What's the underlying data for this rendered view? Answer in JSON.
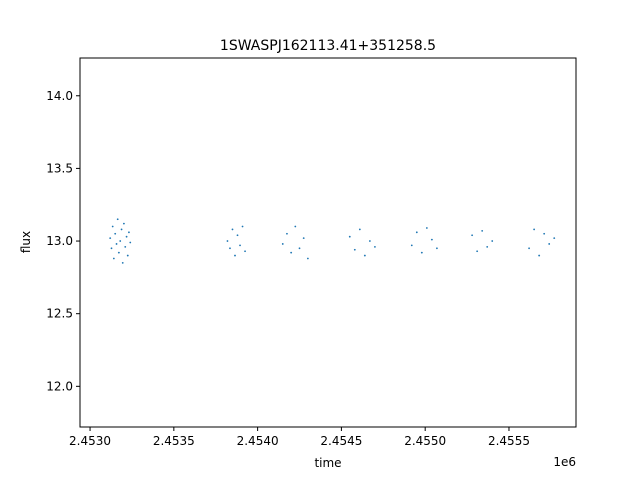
{
  "chart_data": {
    "type": "scatter",
    "title": "1SWASPJ162113.41+351258.5",
    "xlabel": "time",
    "ylabel": "flux",
    "x_offset_label": "1e6",
    "xlim": [
      2452940,
      2455900
    ],
    "ylim": [
      11.72,
      14.26
    ],
    "x_ticks": [
      2453000,
      2453500,
      2454000,
      2454500,
      2455000,
      2455500
    ],
    "x_tick_labels": [
      "2.4530",
      "2.4535",
      "2.4540",
      "2.4545",
      "2.4550",
      "2.4555"
    ],
    "y_ticks": [
      12.0,
      12.5,
      13.0,
      13.5,
      14.0
    ],
    "y_tick_labels": [
      "12.0",
      "12.5",
      "13.0",
      "13.5",
      "14.0"
    ],
    "grid": false,
    "marker_color": "#1f77b4",
    "marker": "point",
    "series": [
      {
        "x": [
          2453120,
          2453128,
          2453135,
          2453142,
          2453150,
          2453158,
          2453165,
          2453172,
          2453180,
          2453188,
          2453195,
          2453202,
          2453210,
          2453218,
          2453225,
          2453232,
          2453240
        ],
        "y": [
          13.02,
          12.95,
          13.1,
          12.88,
          13.05,
          12.98,
          13.15,
          12.92,
          13.0,
          13.08,
          12.85,
          13.12,
          12.96,
          13.03,
          12.9,
          13.06,
          12.99
        ]
      },
      {
        "x": [
          2453820,
          2453835,
          2453850,
          2453865,
          2453880,
          2453895,
          2453910,
          2453925
        ],
        "y": [
          13.0,
          12.95,
          13.08,
          12.9,
          13.04,
          12.97,
          13.1,
          12.93
        ]
      },
      {
        "x": [
          2454150,
          2454175,
          2454200,
          2454225,
          2454250,
          2454275,
          2454300
        ],
        "y": [
          12.98,
          13.05,
          12.92,
          13.1,
          12.95,
          13.02,
          12.88
        ]
      },
      {
        "x": [
          2454550,
          2454580,
          2454610,
          2454640,
          2454670,
          2454700
        ],
        "y": [
          13.03,
          12.94,
          13.08,
          12.9,
          13.0,
          12.96
        ]
      },
      {
        "x": [
          2454920,
          2454950,
          2454980,
          2455010,
          2455040,
          2455070
        ],
        "y": [
          12.97,
          13.06,
          12.92,
          13.09,
          13.01,
          12.95
        ]
      },
      {
        "x": [
          2455280,
          2455310,
          2455340,
          2455370,
          2455400
        ],
        "y": [
          13.04,
          12.93,
          13.07,
          12.96,
          13.0
        ]
      },
      {
        "x": [
          2455620,
          2455650,
          2455680,
          2455710,
          2455740,
          2455770
        ],
        "y": [
          12.95,
          13.08,
          12.9,
          13.05,
          12.98,
          13.02
        ]
      }
    ]
  }
}
